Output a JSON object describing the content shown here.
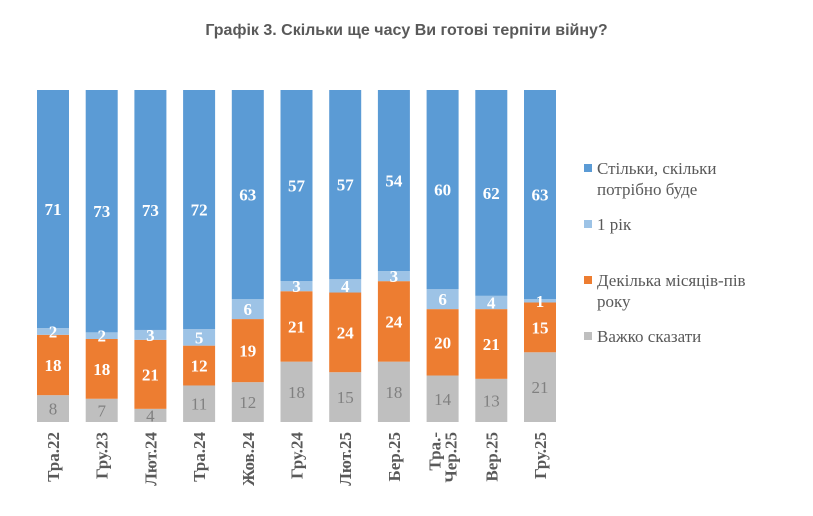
{
  "chart_data": {
    "type": "bar",
    "stacked": true,
    "orientation": "vertical",
    "normalized_percent": true,
    "title": "Графік 3. Скільки ще часу Ви готові терпіти війну?",
    "xlabel": "",
    "ylabel": "",
    "ylim": [
      0,
      100
    ],
    "grid": false,
    "legend_position": "right",
    "categories": [
      "Тра.22",
      "Гру.23",
      "Лют.24",
      "Тра.24",
      "Жов.24",
      "Гру.24",
      "Лют.25",
      "Бер.25",
      "Тра.-Чер.25",
      "Вер.25",
      "Гру.25"
    ],
    "category_lines": [
      [
        "Тра.22"
      ],
      [
        "Гру.23"
      ],
      [
        "Лют.24"
      ],
      [
        "Тра.24"
      ],
      [
        "Жов.24"
      ],
      [
        "Гру.24"
      ],
      [
        "Лют.25"
      ],
      [
        "Бер.25"
      ],
      [
        "Тра.-",
        "Чер.25"
      ],
      [
        "Вер.25"
      ],
      [
        "Гру.25"
      ]
    ],
    "series": [
      {
        "name": "Важко сказати",
        "color": "#BFBFBF",
        "label_color": "#808080",
        "label_bold": false,
        "values": [
          8,
          7,
          4,
          11,
          12,
          18,
          15,
          18,
          14,
          13,
          21
        ]
      },
      {
        "name": "Декілька місяців-пів року",
        "color": "#ED7D31",
        "label_color": "#FFFFFF",
        "label_bold": true,
        "values": [
          18,
          18,
          21,
          12,
          19,
          21,
          24,
          24,
          20,
          21,
          15
        ]
      },
      {
        "name": "1 рік",
        "color": "#9DC3E6",
        "label_color": "#FFFFFF",
        "label_bold": true,
        "values": [
          2,
          2,
          3,
          5,
          6,
          3,
          4,
          3,
          6,
          4,
          1
        ]
      },
      {
        "name": "Стільки, скільки потрібно буде",
        "color": "#5B9BD5",
        "label_color": "#FFFFFF",
        "label_bold": true,
        "values": [
          71,
          73,
          73,
          72,
          63,
          57,
          57,
          54,
          60,
          62,
          63
        ]
      }
    ]
  },
  "legend": {
    "items": [
      {
        "lines": [
          "Стільки, скільки",
          "потрібно буде"
        ],
        "color": "#5B9BD5"
      },
      {
        "lines": [
          "1 рік"
        ],
        "color": "#9DC3E6"
      },
      {
        "lines": [
          "Декілька місяців-пів",
          "року"
        ],
        "color": "#ED7D31"
      },
      {
        "lines": [
          "Важко сказати"
        ],
        "color": "#BFBFBF"
      }
    ]
  }
}
